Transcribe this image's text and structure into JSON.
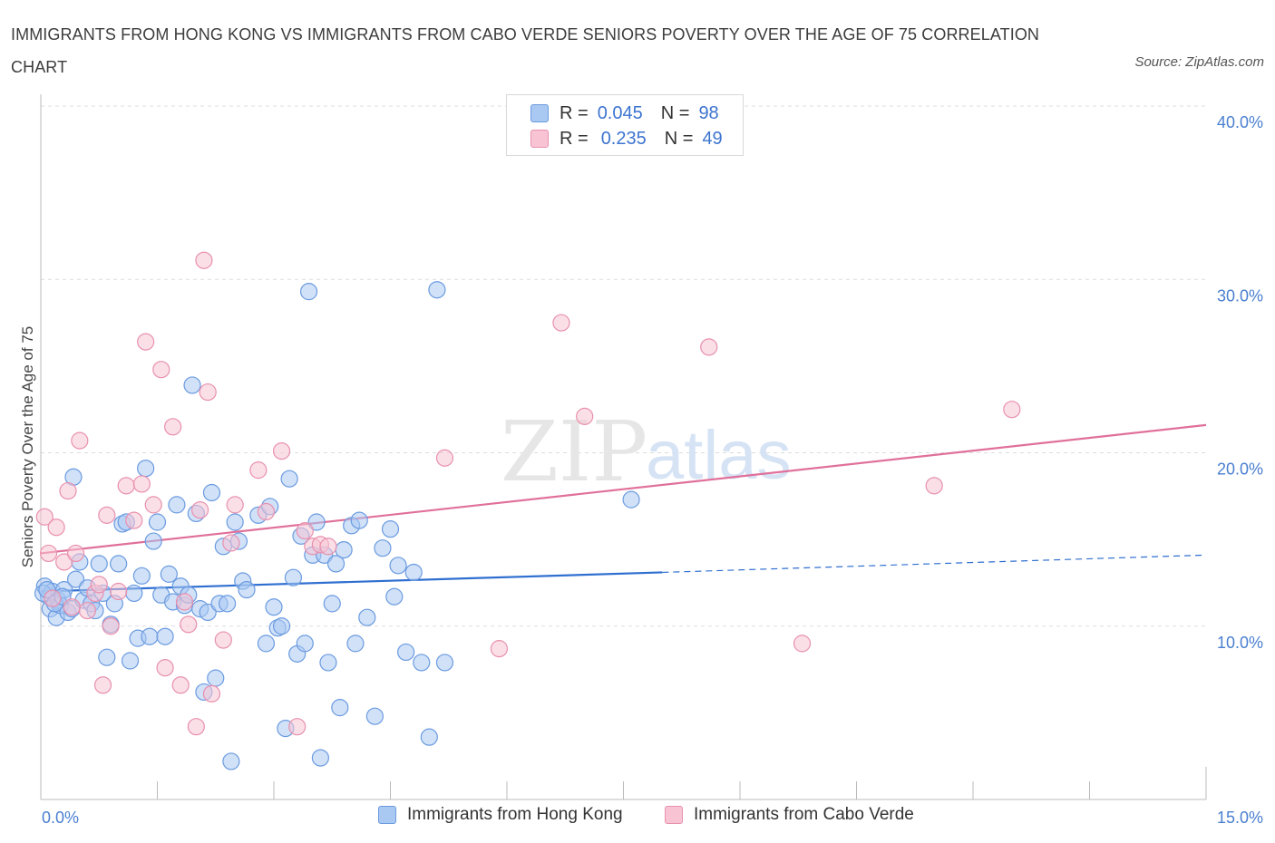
{
  "title": "IMMIGRANTS FROM HONG KONG VS IMMIGRANTS FROM CABO VERDE SENIORS POVERTY OVER THE AGE OF 75 CORRELATION CHART",
  "source": "Source: ZipAtlas.com",
  "watermark": {
    "zip": "ZIP",
    "atlas": "atlas"
  },
  "legend": {
    "rows": [
      {
        "r_label": "R =",
        "r_value": "0.045",
        "n_label": "N =",
        "n_value": "98",
        "color": "#a9c8f2",
        "border": "#6b9be0"
      },
      {
        "r_label": "R =",
        "r_value": "0.235",
        "n_label": "N =",
        "n_value": "49",
        "color": "#f8c4d4",
        "border": "#e890ae"
      }
    ]
  },
  "bottom_legend": [
    {
      "label": "Immigrants from Hong Kong",
      "color": "#a9c8f2",
      "border": "#6b9be0"
    },
    {
      "label": "Immigrants from Cabo Verde",
      "color": "#f8c4d4",
      "border": "#e890ae"
    }
  ],
  "chart_data": {
    "type": "scatter",
    "title": "IMMIGRANTS FROM HONG KONG VS IMMIGRANTS FROM CABO VERDE SENIORS POVERTY OVER THE AGE OF 75 CORRELATION CHART",
    "xlabel": "",
    "ylabel": "Seniors Poverty Over the Age of 75",
    "xlim": [
      0,
      15
    ],
    "ylim": [
      0,
      40
    ],
    "x_tick_labels": [
      "0.0%",
      "15.0%"
    ],
    "y_ticks": [
      10,
      20,
      30,
      40
    ],
    "y_tick_labels": [
      "10.0%",
      "20.0%",
      "30.0%",
      "40.0%"
    ],
    "grid": "dashed horizontal",
    "legend_position": "top-center",
    "series": [
      {
        "name": "Immigrants from Hong Kong",
        "color": "#6b9be0",
        "fill": "#a9c8f2",
        "trend": {
          "x0": 0,
          "y0": 12.0,
          "x1": 8.0,
          "y1": 13.1,
          "dashed_to_x": 15,
          "dashed_to_y": 14.1,
          "line_color": "#2f6fd0"
        },
        "points": [
          [
            0.05,
            12.3
          ],
          [
            0.1,
            11.7
          ],
          [
            0.12,
            11.0
          ],
          [
            0.15,
            12.0
          ],
          [
            0.2,
            10.5
          ],
          [
            0.22,
            11.5
          ],
          [
            0.25,
            11.2
          ],
          [
            0.3,
            12.1
          ],
          [
            0.35,
            10.8
          ],
          [
            0.4,
            11.0
          ],
          [
            0.42,
            18.6
          ],
          [
            0.45,
            12.7
          ],
          [
            0.5,
            13.7
          ],
          [
            0.55,
            11.5
          ],
          [
            0.6,
            12.2
          ],
          [
            0.65,
            11.3
          ],
          [
            0.7,
            10.9
          ],
          [
            0.75,
            13.6
          ],
          [
            0.8,
            11.9
          ],
          [
            0.85,
            8.2
          ],
          [
            0.9,
            10.1
          ],
          [
            0.95,
            11.3
          ],
          [
            1.0,
            13.6
          ],
          [
            1.05,
            15.9
          ],
          [
            1.1,
            16.0
          ],
          [
            1.15,
            8.0
          ],
          [
            1.2,
            11.9
          ],
          [
            1.25,
            9.3
          ],
          [
            1.3,
            12.9
          ],
          [
            1.35,
            19.1
          ],
          [
            1.4,
            9.4
          ],
          [
            1.45,
            14.9
          ],
          [
            1.5,
            16.0
          ],
          [
            1.55,
            11.8
          ],
          [
            1.6,
            9.4
          ],
          [
            1.65,
            13.0
          ],
          [
            1.7,
            11.4
          ],
          [
            1.75,
            17.0
          ],
          [
            1.8,
            12.3
          ],
          [
            1.85,
            11.2
          ],
          [
            1.9,
            11.8
          ],
          [
            1.95,
            23.9
          ],
          [
            2.0,
            16.5
          ],
          [
            2.05,
            11.0
          ],
          [
            2.1,
            6.2
          ],
          [
            2.15,
            10.8
          ],
          [
            2.2,
            17.7
          ],
          [
            2.25,
            7.0
          ],
          [
            2.3,
            11.3
          ],
          [
            2.35,
            14.6
          ],
          [
            2.4,
            11.3
          ],
          [
            2.45,
            2.2
          ],
          [
            2.5,
            16.0
          ],
          [
            2.55,
            14.9
          ],
          [
            2.6,
            12.6
          ],
          [
            2.65,
            12.1
          ],
          [
            2.8,
            16.4
          ],
          [
            2.9,
            9.0
          ],
          [
            2.95,
            16.9
          ],
          [
            3.0,
            11.1
          ],
          [
            3.05,
            9.9
          ],
          [
            3.1,
            10.0
          ],
          [
            3.15,
            4.1
          ],
          [
            3.2,
            18.5
          ],
          [
            3.25,
            12.8
          ],
          [
            3.3,
            8.4
          ],
          [
            3.35,
            15.2
          ],
          [
            3.4,
            9.0
          ],
          [
            3.45,
            29.3
          ],
          [
            3.5,
            14.1
          ],
          [
            3.55,
            16.0
          ],
          [
            3.6,
            2.4
          ],
          [
            3.65,
            14.1
          ],
          [
            3.7,
            7.9
          ],
          [
            3.75,
            11.3
          ],
          [
            3.8,
            13.6
          ],
          [
            3.85,
            5.3
          ],
          [
            3.9,
            14.4
          ],
          [
            4.0,
            15.8
          ],
          [
            4.05,
            9.0
          ],
          [
            4.1,
            16.1
          ],
          [
            4.2,
            10.5
          ],
          [
            4.3,
            4.8
          ],
          [
            4.4,
            14.5
          ],
          [
            4.5,
            15.6
          ],
          [
            4.55,
            11.7
          ],
          [
            4.6,
            13.5
          ],
          [
            4.7,
            8.5
          ],
          [
            4.8,
            13.1
          ],
          [
            4.9,
            7.9
          ],
          [
            5.0,
            3.6
          ],
          [
            5.1,
            29.4
          ],
          [
            5.2,
            7.9
          ],
          [
            7.6,
            17.3
          ],
          [
            0.03,
            11.9
          ],
          [
            0.08,
            12.1
          ],
          [
            0.18,
            11.3
          ],
          [
            0.28,
            11.7
          ]
        ]
      },
      {
        "name": "Immigrants from Cabo Verde",
        "color": "#e890ae",
        "fill": "#f8c4d4",
        "trend": {
          "x0": 0,
          "y0": 14.2,
          "x1": 15,
          "y1": 21.6,
          "line_color": "#e0709a"
        },
        "points": [
          [
            0.05,
            16.3
          ],
          [
            0.1,
            14.2
          ],
          [
            0.15,
            11.6
          ],
          [
            0.2,
            15.7
          ],
          [
            0.3,
            13.7
          ],
          [
            0.35,
            17.8
          ],
          [
            0.4,
            11.1
          ],
          [
            0.45,
            14.2
          ],
          [
            0.5,
            20.7
          ],
          [
            0.6,
            10.9
          ],
          [
            0.7,
            11.9
          ],
          [
            0.75,
            12.4
          ],
          [
            0.8,
            6.6
          ],
          [
            0.85,
            16.4
          ],
          [
            0.9,
            10.0
          ],
          [
            1.0,
            12.0
          ],
          [
            1.1,
            18.1
          ],
          [
            1.2,
            16.1
          ],
          [
            1.3,
            18.2
          ],
          [
            1.35,
            26.4
          ],
          [
            1.45,
            17.0
          ],
          [
            1.55,
            24.8
          ],
          [
            1.6,
            7.6
          ],
          [
            1.7,
            21.5
          ],
          [
            1.8,
            6.6
          ],
          [
            1.85,
            11.4
          ],
          [
            1.9,
            10.1
          ],
          [
            2.0,
            4.2
          ],
          [
            2.05,
            16.7
          ],
          [
            2.1,
            31.1
          ],
          [
            2.15,
            23.5
          ],
          [
            2.2,
            6.1
          ],
          [
            2.35,
            9.2
          ],
          [
            2.45,
            14.8
          ],
          [
            2.5,
            17.0
          ],
          [
            2.8,
            19.0
          ],
          [
            2.9,
            16.6
          ],
          [
            3.1,
            20.1
          ],
          [
            3.3,
            4.2
          ],
          [
            3.4,
            15.5
          ],
          [
            3.5,
            14.6
          ],
          [
            3.6,
            14.7
          ],
          [
            3.7,
            14.6
          ],
          [
            5.2,
            19.7
          ],
          [
            5.9,
            8.7
          ],
          [
            6.7,
            27.5
          ],
          [
            7.0,
            22.1
          ],
          [
            8.6,
            26.1
          ],
          [
            9.8,
            9.0
          ],
          [
            11.5,
            18.1
          ],
          [
            12.5,
            22.5
          ]
        ]
      }
    ]
  }
}
